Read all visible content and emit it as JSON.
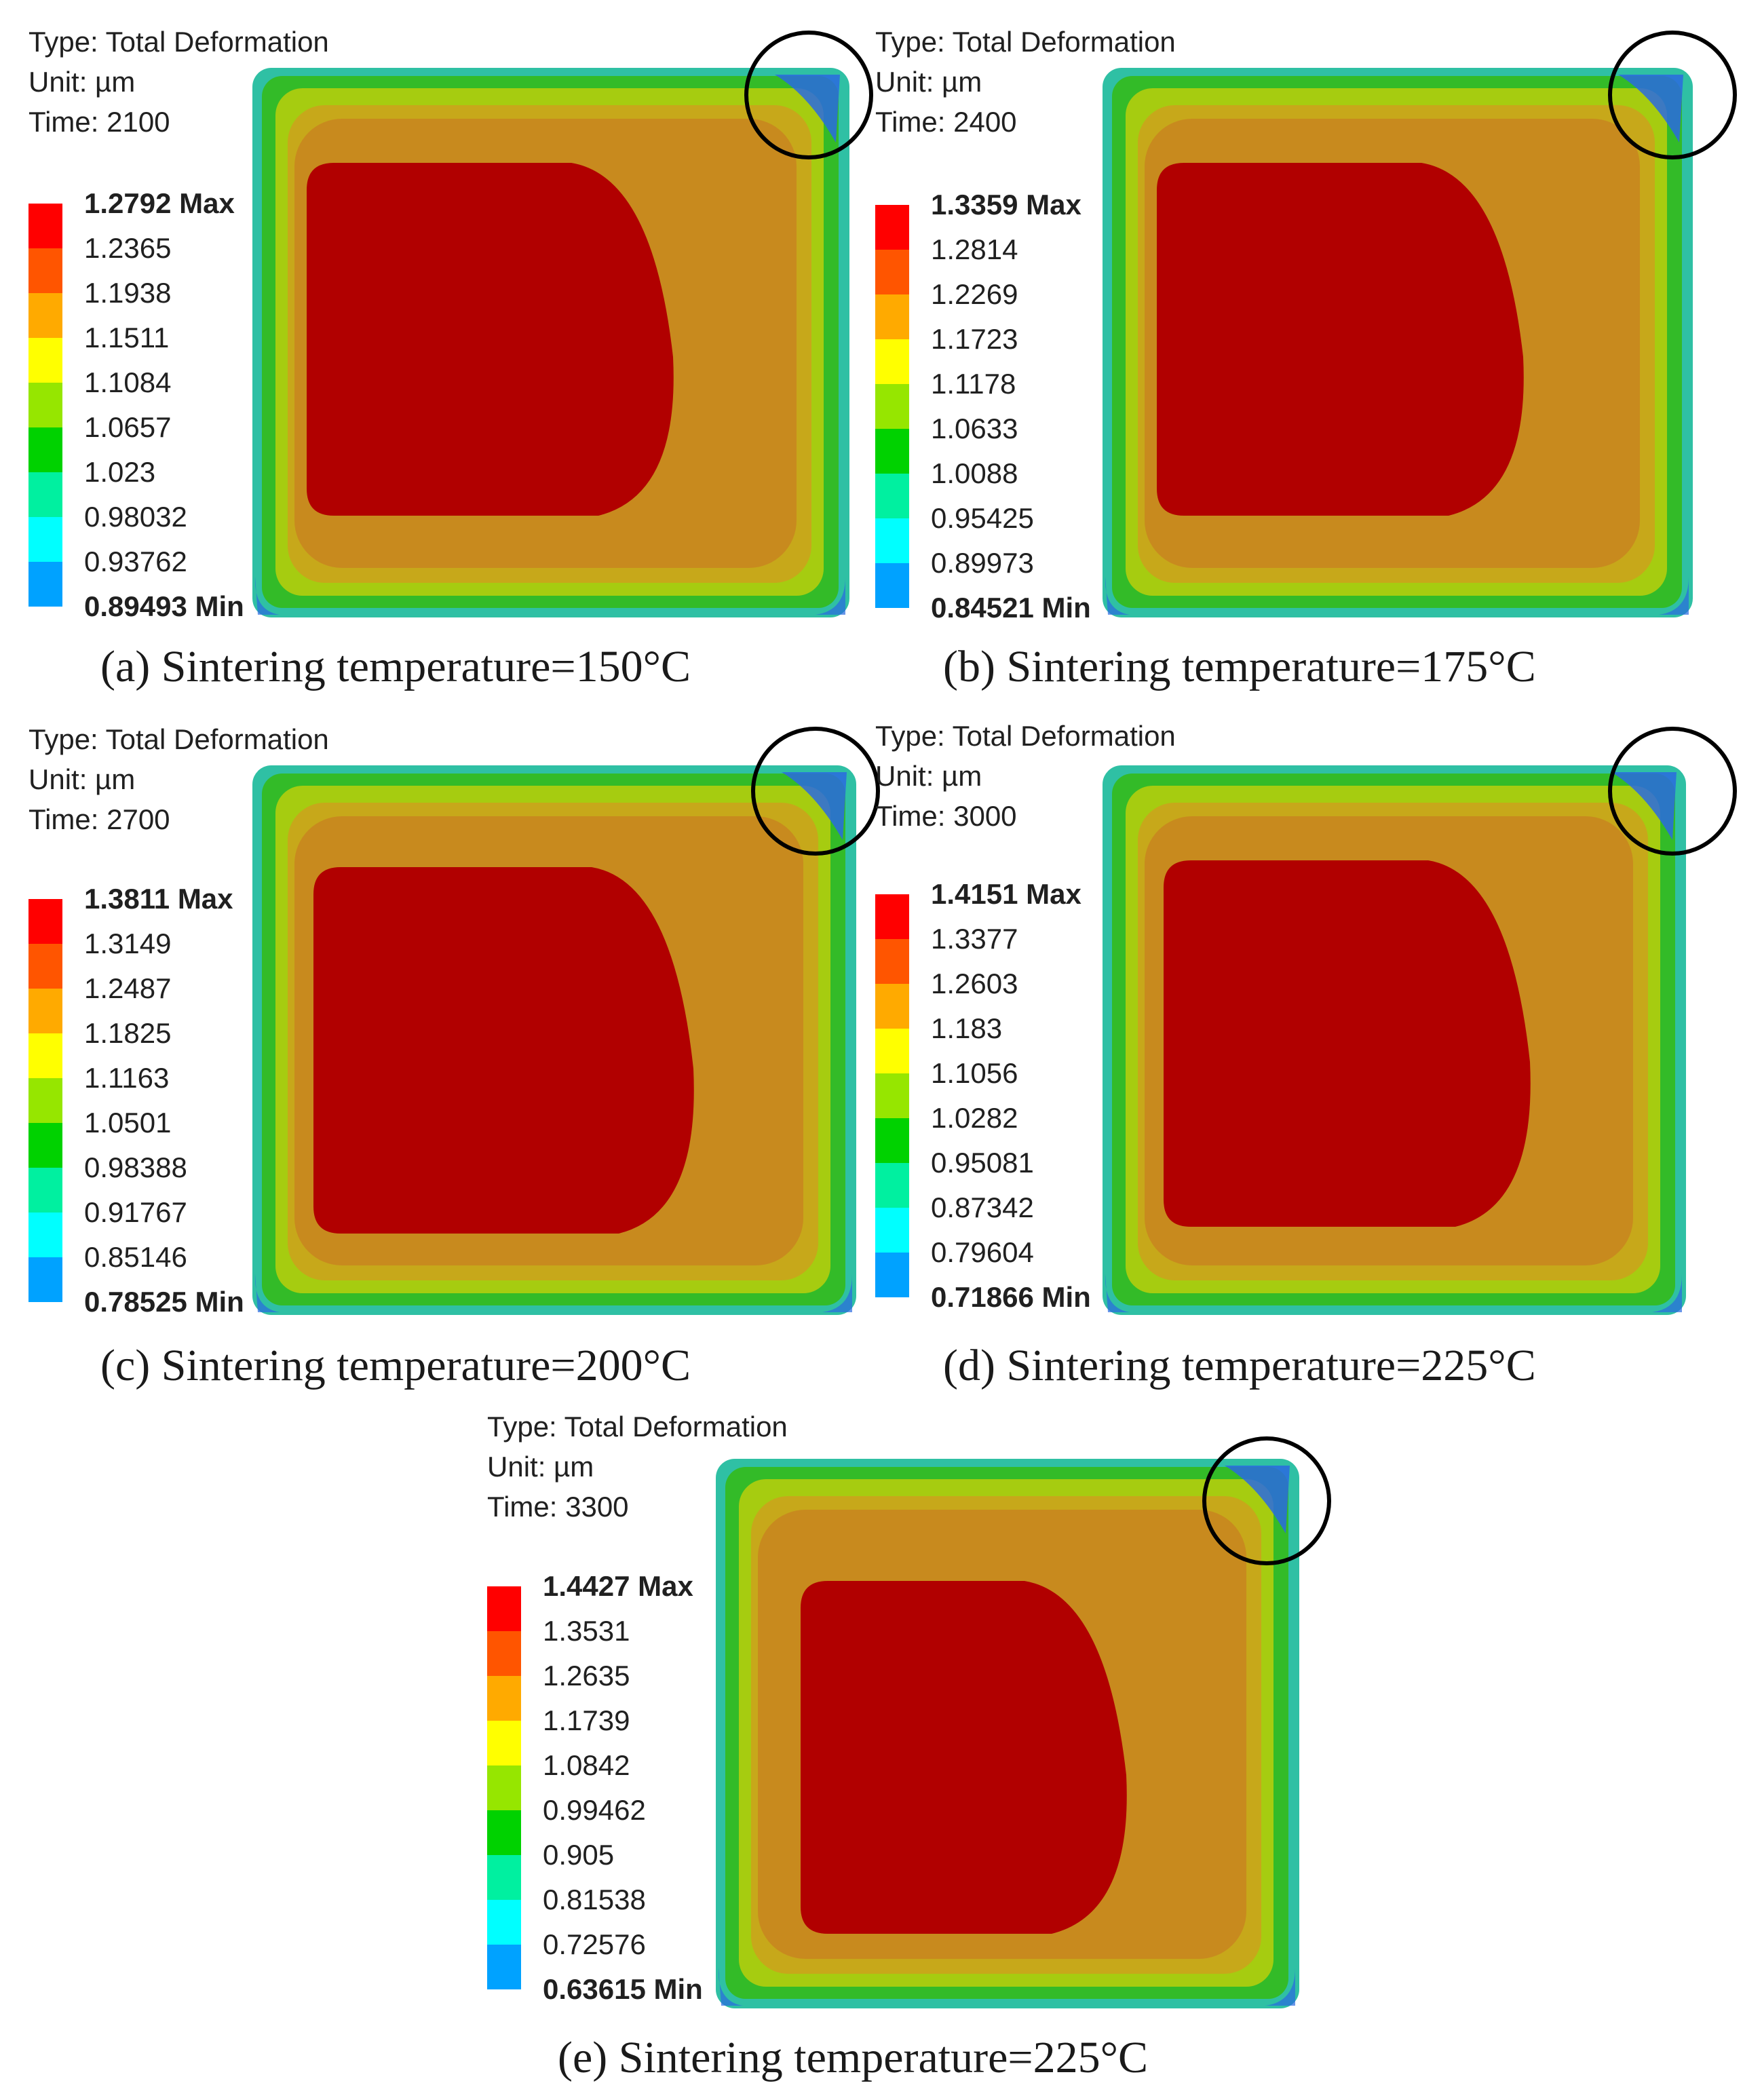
{
  "colors": {
    "scale": [
      "#0000e6",
      "#00a2ff",
      "#00ffff",
      "#00f0a0",
      "#00d200",
      "#96e600",
      "#ffff00",
      "#ffaa00",
      "#ff5500",
      "#ff0000"
    ],
    "contour": {
      "outer_edge": "#2fc0a4",
      "green": "#33bb28",
      "lime": "#a6cc10",
      "olive": "#c7a81a",
      "orange": "#c88a1e",
      "red": "#b10000",
      "corner_blue": "#2a6ae0",
      "circle": "#000000"
    }
  },
  "panels": [
    {
      "id": "a",
      "info": {
        "type": "Type: Total Deformation",
        "unit": "Unit: µm",
        "time": "Time: 2100"
      },
      "legend": [
        "1.2792 Max",
        "1.2365",
        "1.1938",
        "1.1511",
        "1.1084",
        "1.0657",
        "1.023",
        "0.98032",
        "0.93762",
        "0.89493 Min"
      ],
      "caption": "(a) Sintering temperature=150°C"
    },
    {
      "id": "b",
      "info": {
        "type": "Type: Total Deformation",
        "unit": "Unit: µm",
        "time": "Time: 2400"
      },
      "legend": [
        "1.3359 Max",
        "1.2814",
        "1.2269",
        "1.1723",
        "1.1178",
        "1.0633",
        "1.0088",
        "0.95425",
        "0.89973",
        "0.84521 Min"
      ],
      "caption": "(b) Sintering temperature=175°C"
    },
    {
      "id": "c",
      "info": {
        "type": "Type: Total Deformation",
        "unit": "Unit: µm",
        "time": "Time: 2700"
      },
      "legend": [
        "1.3811 Max",
        "1.3149",
        "1.2487",
        "1.1825",
        "1.1163",
        "1.0501",
        "0.98388",
        "0.91767",
        "0.85146",
        "0.78525 Min"
      ],
      "caption": "(c) Sintering temperature=200°C"
    },
    {
      "id": "d",
      "info": {
        "type": "Type: Total Deformation",
        "unit": "Unit: µm",
        "time": "Time: 3000"
      },
      "legend": [
        "1.4151 Max",
        "1.3377",
        "1.2603",
        "1.183",
        "1.1056",
        "1.0282",
        "0.95081",
        "0.87342",
        "0.79604",
        "0.71866 Min"
      ],
      "caption": "(d) Sintering temperature=225°C"
    },
    {
      "id": "e",
      "info": {
        "type": "Type: Total Deformation",
        "unit": "Unit: µm",
        "time": "Time: 3300"
      },
      "legend": [
        "1.4427 Max",
        "1.3531",
        "1.2635",
        "1.1739",
        "1.0842",
        "0.99462",
        "0.905",
        "0.81538",
        "0.72576",
        "0.63615 Min"
      ],
      "caption": "(e) Sintering temperature=225°C"
    }
  ]
}
